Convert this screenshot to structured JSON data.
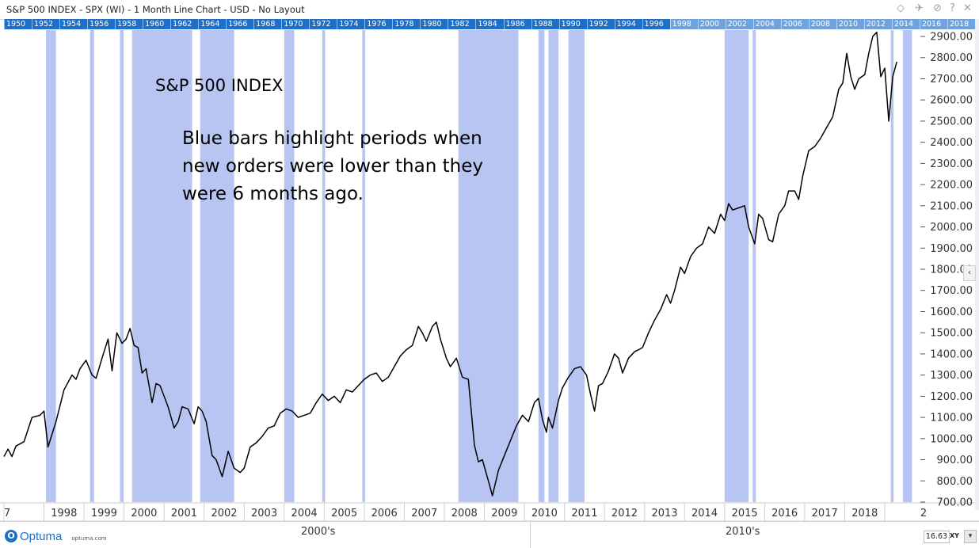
{
  "window": {
    "title": "S&P 500 INDEX - SPX (WI) - 1 Month Line Chart - USD - No Layout"
  },
  "toolbar_icons": [
    "diamond-icon",
    "pin-icon",
    "tag-icon",
    "help-icon",
    "close-icon"
  ],
  "toolbar_glyphs": {
    "diamond": "◇",
    "pin": "✈",
    "tag": "⊘",
    "help": "?",
    "close": "✕"
  },
  "year_strip": [
    "1950",
    "1952",
    "1954",
    "1956",
    "1958",
    "1960",
    "1962",
    "1964",
    "1966",
    "1968",
    "1970",
    "1972",
    "1974",
    "1976",
    "1978",
    "1980",
    "1982",
    "1984",
    "1986",
    "1988",
    "1990",
    "1992",
    "1994",
    "1996",
    "1998",
    "2000",
    "2002",
    "2004",
    "2006",
    "2008",
    "2010",
    "2012",
    "2014",
    "2016",
    "2018"
  ],
  "annotation": {
    "title": "S&P 500 INDEX",
    "body": "Blue bars highlight periods when new orders were lower than they were 6 months ago."
  },
  "collapse_glyph": "‹",
  "bottom": {
    "logo_text": "Optuma",
    "logo_mark": "O",
    "logo_url": "optuma.com",
    "decades": [
      "2000's",
      "2010's"
    ],
    "zoom": "16.63",
    "xy_label": "XY",
    "xy_button": "▾"
  },
  "chart_data": {
    "type": "line",
    "x_unit": "year",
    "x_tick_labels": [
      "7",
      "1998",
      "1999",
      "2000",
      "2001",
      "2002",
      "2003",
      "2004",
      "2005",
      "2006",
      "2007",
      "2008",
      "2009",
      "2010",
      "2011",
      "2012",
      "2013",
      "2014",
      "2015",
      "2016",
      "2017",
      "2018",
      "2"
    ],
    "y_tick_labels": [
      "700.00",
      "800.00",
      "900.00",
      "1000.00",
      "1100.00",
      "1200.00",
      "1300.00",
      "1400.00",
      "1500.00",
      "1600.00",
      "1700.00",
      "1800.00",
      "1900.00",
      "2000.00",
      "2100.00",
      "2200.00",
      "2300.00",
      "2400.00",
      "2500.00",
      "2600.00",
      "2700.00",
      "2800.00",
      "2900.00"
    ],
    "ylim": [
      700,
      2930
    ],
    "xlim": [
      1997.0,
      2019.85
    ],
    "colors": {
      "line": "#000000",
      "shade": "#b8c5f2",
      "axis": "#333333"
    },
    "shaded_periods": [
      [
        1998.05,
        1998.3
      ],
      [
        1999.15,
        1999.25
      ],
      [
        1999.9,
        1999.99
      ],
      [
        2000.2,
        2001.7
      ],
      [
        2001.9,
        2002.75
      ],
      [
        2004.0,
        2004.25
      ],
      [
        2004.95,
        2005.02
      ],
      [
        2005.95,
        2006.02
      ],
      [
        2008.35,
        2009.85
      ],
      [
        2010.35,
        2010.5
      ],
      [
        2010.6,
        2010.85
      ],
      [
        2011.1,
        2011.5
      ],
      [
        2015.0,
        2015.6
      ],
      [
        2015.7,
        2015.78
      ],
      [
        2019.15,
        2019.22
      ],
      [
        2019.45,
        2019.68
      ]
    ],
    "series": [
      {
        "values": [
          [
            1997.0,
            915
          ],
          [
            1997.1,
            950
          ],
          [
            1997.2,
            915
          ],
          [
            1997.3,
            965
          ],
          [
            1997.5,
            985
          ],
          [
            1997.7,
            1100
          ],
          [
            1997.9,
            1110
          ],
          [
            1998.0,
            1130
          ],
          [
            1998.1,
            960
          ],
          [
            1998.3,
            1080
          ],
          [
            1998.5,
            1230
          ],
          [
            1998.7,
            1300
          ],
          [
            1998.8,
            1280
          ],
          [
            1998.9,
            1330
          ],
          [
            1999.05,
            1370
          ],
          [
            1999.2,
            1300
          ],
          [
            1999.3,
            1285
          ],
          [
            1999.45,
            1380
          ],
          [
            1999.6,
            1470
          ],
          [
            1999.7,
            1320
          ],
          [
            1999.82,
            1500
          ],
          [
            1999.95,
            1450
          ],
          [
            2000.05,
            1470
          ],
          [
            2000.15,
            1520
          ],
          [
            2000.25,
            1440
          ],
          [
            2000.35,
            1430
          ],
          [
            2000.45,
            1310
          ],
          [
            2000.55,
            1330
          ],
          [
            2000.7,
            1170
          ],
          [
            2000.8,
            1260
          ],
          [
            2000.9,
            1250
          ],
          [
            2001.0,
            1200
          ],
          [
            2001.1,
            1150
          ],
          [
            2001.25,
            1050
          ],
          [
            2001.35,
            1080
          ],
          [
            2001.45,
            1150
          ],
          [
            2001.6,
            1140
          ],
          [
            2001.75,
            1070
          ],
          [
            2001.85,
            1150
          ],
          [
            2001.95,
            1130
          ],
          [
            2002.05,
            1080
          ],
          [
            2002.2,
            920
          ],
          [
            2002.3,
            900
          ],
          [
            2002.45,
            820
          ],
          [
            2002.6,
            940
          ],
          [
            2002.75,
            860
          ],
          [
            2002.9,
            840
          ],
          [
            2003.0,
            860
          ],
          [
            2003.15,
            960
          ],
          [
            2003.3,
            980
          ],
          [
            2003.45,
            1010
          ],
          [
            2003.6,
            1050
          ],
          [
            2003.75,
            1060
          ],
          [
            2003.9,
            1120
          ],
          [
            2004.05,
            1140
          ],
          [
            2004.2,
            1130
          ],
          [
            2004.35,
            1100
          ],
          [
            2004.5,
            1110
          ],
          [
            2004.65,
            1120
          ],
          [
            2004.8,
            1170
          ],
          [
            2004.95,
            1210
          ],
          [
            2005.1,
            1180
          ],
          [
            2005.25,
            1200
          ],
          [
            2005.4,
            1170
          ],
          [
            2005.55,
            1230
          ],
          [
            2005.7,
            1220
          ],
          [
            2005.85,
            1250
          ],
          [
            2006.0,
            1280
          ],
          [
            2006.15,
            1300
          ],
          [
            2006.3,
            1310
          ],
          [
            2006.45,
            1270
          ],
          [
            2006.6,
            1290
          ],
          [
            2006.75,
            1340
          ],
          [
            2006.9,
            1390
          ],
          [
            2007.05,
            1420
          ],
          [
            2007.2,
            1440
          ],
          [
            2007.35,
            1530
          ],
          [
            2007.45,
            1500
          ],
          [
            2007.55,
            1460
          ],
          [
            2007.7,
            1530
          ],
          [
            2007.8,
            1550
          ],
          [
            2007.9,
            1470
          ],
          [
            2008.05,
            1380
          ],
          [
            2008.15,
            1340
          ],
          [
            2008.3,
            1380
          ],
          [
            2008.45,
            1290
          ],
          [
            2008.6,
            1280
          ],
          [
            2008.75,
            970
          ],
          [
            2008.85,
            890
          ],
          [
            2008.95,
            900
          ],
          [
            2009.1,
            800
          ],
          [
            2009.2,
            730
          ],
          [
            2009.35,
            850
          ],
          [
            2009.5,
            920
          ],
          [
            2009.65,
            990
          ],
          [
            2009.8,
            1060
          ],
          [
            2009.95,
            1110
          ],
          [
            2010.1,
            1080
          ],
          [
            2010.25,
            1170
          ],
          [
            2010.35,
            1190
          ],
          [
            2010.45,
            1090
          ],
          [
            2010.55,
            1030
          ],
          [
            2010.6,
            1100
          ],
          [
            2010.7,
            1050
          ],
          [
            2010.85,
            1180
          ],
          [
            2010.95,
            1240
          ],
          [
            2011.1,
            1290
          ],
          [
            2011.25,
            1330
          ],
          [
            2011.4,
            1340
          ],
          [
            2011.55,
            1300
          ],
          [
            2011.65,
            1210
          ],
          [
            2011.75,
            1130
          ],
          [
            2011.85,
            1250
          ],
          [
            2011.95,
            1260
          ],
          [
            2012.1,
            1320
          ],
          [
            2012.25,
            1400
          ],
          [
            2012.35,
            1380
          ],
          [
            2012.45,
            1310
          ],
          [
            2012.6,
            1380
          ],
          [
            2012.75,
            1410
          ],
          [
            2012.85,
            1420
          ],
          [
            2012.95,
            1430
          ],
          [
            2013.1,
            1500
          ],
          [
            2013.25,
            1560
          ],
          [
            2013.4,
            1610
          ],
          [
            2013.55,
            1680
          ],
          [
            2013.65,
            1640
          ],
          [
            2013.75,
            1700
          ],
          [
            2013.9,
            1810
          ],
          [
            2014.0,
            1780
          ],
          [
            2014.15,
            1860
          ],
          [
            2014.3,
            1900
          ],
          [
            2014.45,
            1920
          ],
          [
            2014.6,
            2000
          ],
          [
            2014.75,
            1970
          ],
          [
            2014.9,
            2060
          ],
          [
            2015.0,
            2030
          ],
          [
            2015.1,
            2110
          ],
          [
            2015.2,
            2080
          ],
          [
            2015.35,
            2090
          ],
          [
            2015.5,
            2100
          ],
          [
            2015.6,
            2000
          ],
          [
            2015.75,
            1920
          ],
          [
            2015.85,
            2060
          ],
          [
            2015.95,
            2040
          ],
          [
            2016.1,
            1940
          ],
          [
            2016.2,
            1930
          ],
          [
            2016.35,
            2060
          ],
          [
            2016.5,
            2100
          ],
          [
            2016.6,
            2170
          ],
          [
            2016.75,
            2170
          ],
          [
            2016.85,
            2130
          ],
          [
            2016.95,
            2240
          ],
          [
            2017.1,
            2360
          ],
          [
            2017.25,
            2380
          ],
          [
            2017.4,
            2420
          ],
          [
            2017.55,
            2470
          ],
          [
            2017.7,
            2520
          ],
          [
            2017.85,
            2650
          ],
          [
            2017.95,
            2680
          ],
          [
            2018.05,
            2820
          ],
          [
            2018.15,
            2710
          ],
          [
            2018.25,
            2650
          ],
          [
            2018.35,
            2700
          ],
          [
            2018.5,
            2720
          ],
          [
            2018.6,
            2820
          ],
          [
            2018.7,
            2900
          ],
          [
            2018.8,
            2920
          ],
          [
            2018.9,
            2710
          ],
          [
            2019.0,
            2750
          ],
          [
            2019.1,
            2500
          ],
          [
            2019.2,
            2710
          ],
          [
            2019.3,
            2780
          ]
        ]
      }
    ]
  }
}
